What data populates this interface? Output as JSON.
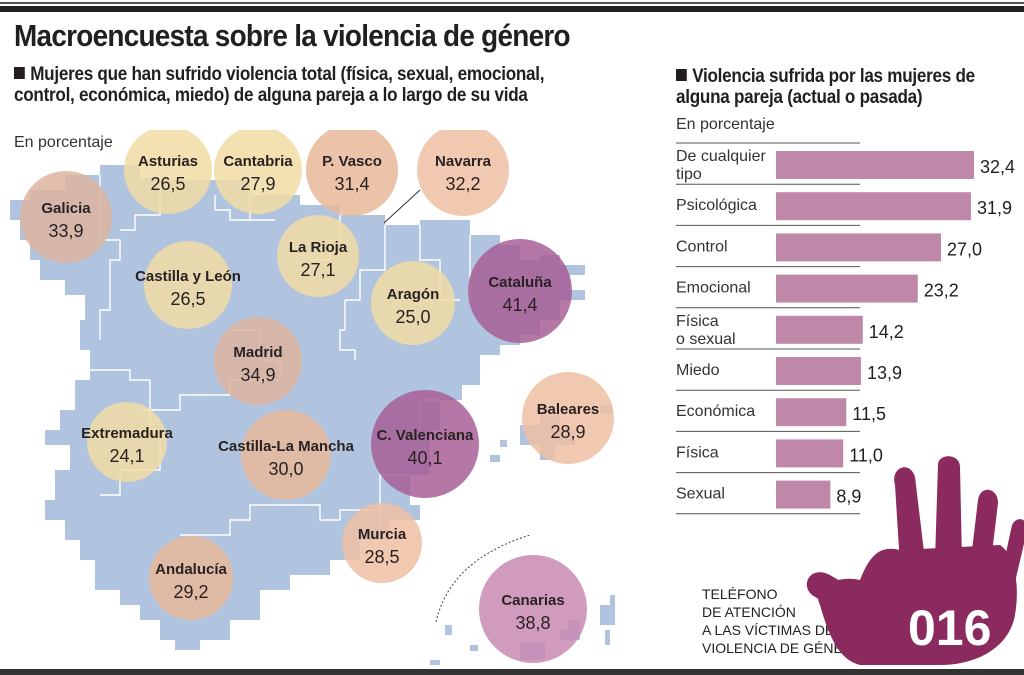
{
  "title": "Macroencuesta sobre la violencia de género",
  "chart_data": [
    {
      "type": "scatter",
      "subtype": "bubble-map",
      "title": "Mujeres que han sufrido violencia total (física, sexual, emocional, control, económica, miedo) de alguna pareja a lo largo de su vida",
      "unit_label": "En porcentaje",
      "regions": [
        {
          "name": "Galicia",
          "value": 33.9,
          "display": "33,9",
          "color": "#ddb4a0"
        },
        {
          "name": "Asturias",
          "value": 26.5,
          "display": "26,5",
          "color": "#f2dca5"
        },
        {
          "name": "Cantabria",
          "value": 27.9,
          "display": "27,9",
          "color": "#f2dca5"
        },
        {
          "name": "P. Vasco",
          "value": 31.4,
          "display": "31,4",
          "color": "#e8b89a"
        },
        {
          "name": "Navarra",
          "value": 32.2,
          "display": "32,2",
          "color": "#eec0a3"
        },
        {
          "name": "La Rioja",
          "value": 27.1,
          "display": "27,1",
          "color": "#f2dca5"
        },
        {
          "name": "Castilla y León",
          "value": 26.5,
          "display": "26,5",
          "color": "#f2dca5"
        },
        {
          "name": "Aragón",
          "value": 25.0,
          "display": "25,0",
          "color": "#f2dca5"
        },
        {
          "name": "Cataluña",
          "value": 41.4,
          "display": "41,4",
          "color": "#a75f96"
        },
        {
          "name": "Madrid",
          "value": 34.9,
          "display": "34,9",
          "color": "#ddb4a0"
        },
        {
          "name": "Extremadura",
          "value": 24.1,
          "display": "24,1",
          "color": "#f2dca5"
        },
        {
          "name": "Castilla-La Mancha",
          "value": 30.0,
          "display": "30,0",
          "color": "#e8b89a"
        },
        {
          "name": "C. Valenciana",
          "value": 40.1,
          "display": "40,1",
          "color": "#a75f96"
        },
        {
          "name": "Baleares",
          "value": 28.9,
          "display": "28,9",
          "color": "#eec0a3"
        },
        {
          "name": "Murcia",
          "value": 28.5,
          "display": "28,5",
          "color": "#eec0a3"
        },
        {
          "name": "Andalucía",
          "value": 29.2,
          "display": "29,2",
          "color": "#e8b89a"
        },
        {
          "name": "Canarias",
          "value": 38.8,
          "display": "38,8",
          "color": "#c98ab3"
        }
      ],
      "map_color": "#b0c4df"
    },
    {
      "type": "bar",
      "orientation": "horizontal",
      "title": "Violencia sufrida por las mujeres de alguna pareja (actual o pasada)",
      "unit_label": "En porcentaje",
      "categories": [
        "De cualquier tipo",
        "Psicológica",
        "Control",
        "Emocional",
        "Física o sexual",
        "Miedo",
        "Económica",
        "Física",
        "Sexual"
      ],
      "category_lines": [
        [
          "De cualquier",
          "tipo"
        ],
        [
          "Psicológica"
        ],
        [
          "Control"
        ],
        [
          "Emocional"
        ],
        [
          "Física",
          "o sexual"
        ],
        [
          "Miedo"
        ],
        [
          "Económica"
        ],
        [
          "Física"
        ],
        [
          "Sexual"
        ]
      ],
      "values": [
        32.4,
        31.9,
        27.0,
        23.2,
        14.2,
        13.9,
        11.5,
        11.0,
        8.9
      ],
      "value_labels": [
        "32,4",
        "31,9",
        "27,0",
        "23,2",
        "14,2",
        "13,9",
        "11,5",
        "11,0",
        "8,9"
      ],
      "xlim": [
        0,
        32.4
      ],
      "bar_color": "#c088a8"
    }
  ],
  "hotline": {
    "lines": [
      "TELÉFONO",
      "DE ATENCIÓN",
      "A LAS VÍCTIMAS DE",
      "VIOLENCIA DE GÉNERO"
    ],
    "number": "016",
    "hand_color": "#8b2a5e"
  }
}
